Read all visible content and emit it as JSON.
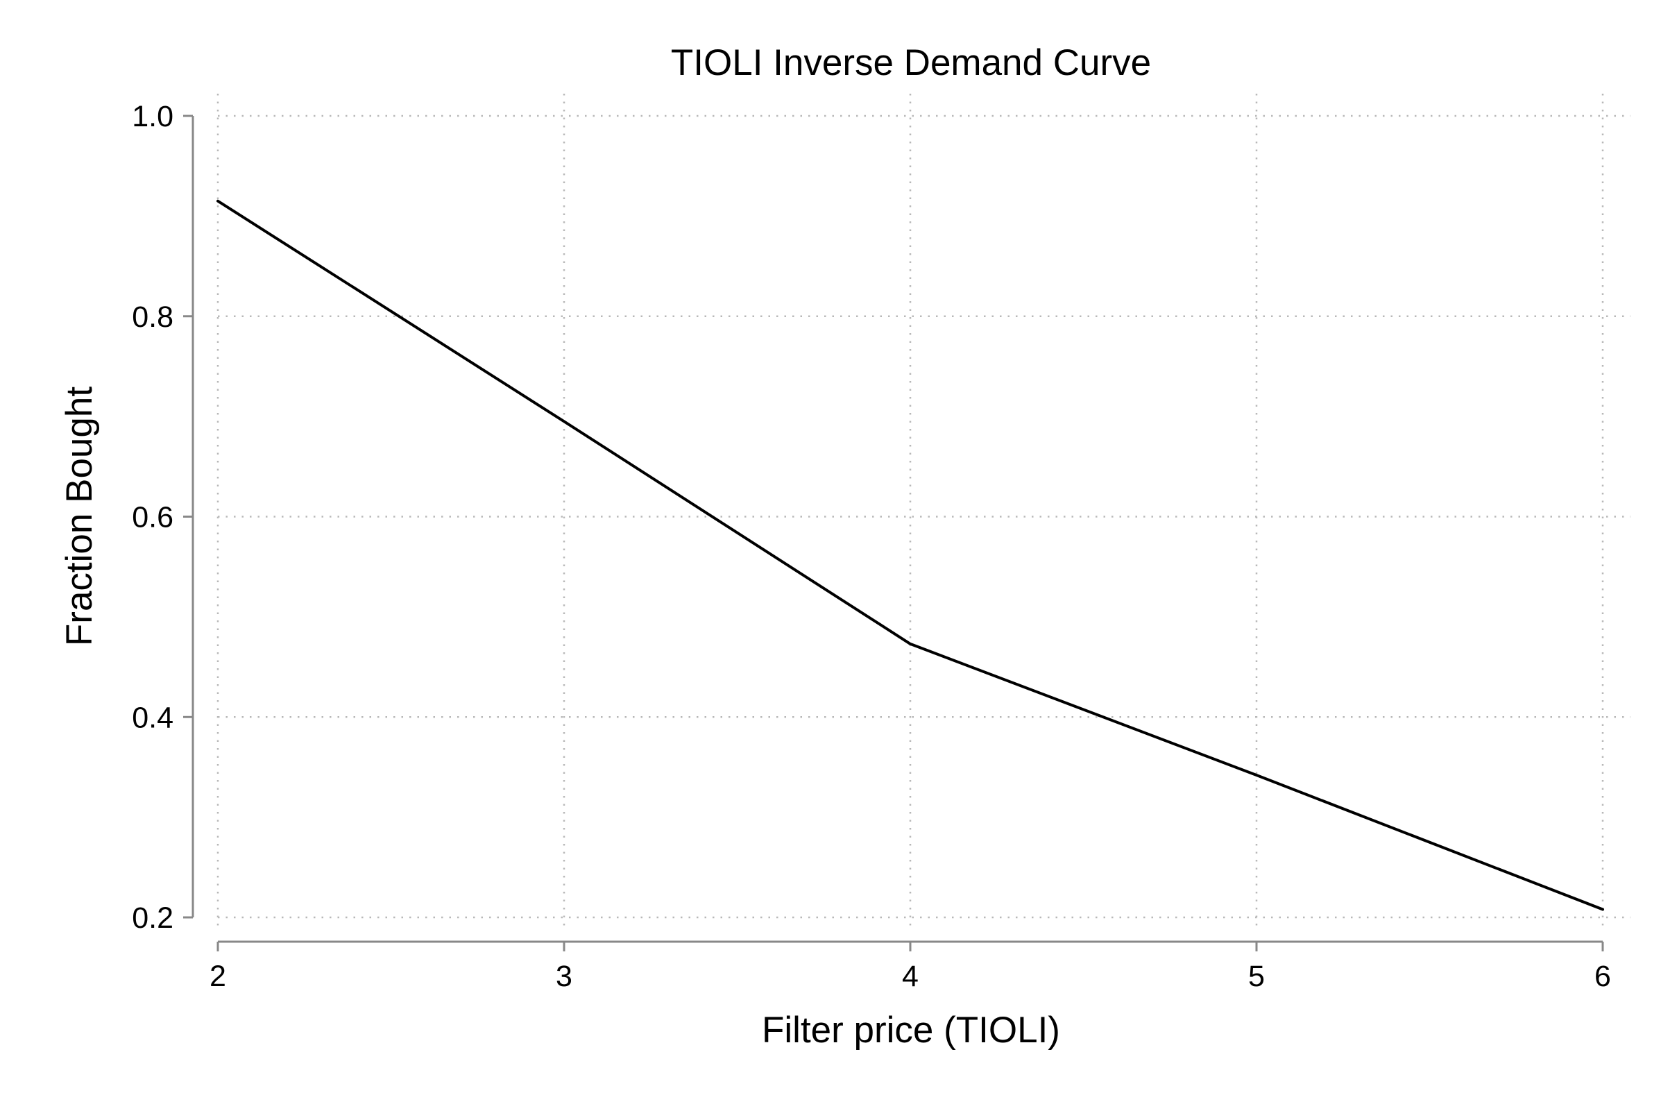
{
  "chart_data": {
    "type": "line",
    "title": "TIOLI Inverse Demand Curve",
    "xlabel": "Filter price (TIOLI)",
    "ylabel": "Fraction Bought",
    "xlim": [
      2,
      6
    ],
    "ylim": [
      0.2,
      1.0
    ],
    "x_ticks": [
      2,
      3,
      4,
      5,
      6
    ],
    "x_tick_labels": [
      "2",
      "3",
      "4",
      "5",
      "6"
    ],
    "y_ticks": [
      0.2,
      0.4,
      0.6,
      0.8,
      1.0
    ],
    "y_tick_labels": [
      "0.2",
      "0.4",
      "0.6",
      "0.8",
      "1.0"
    ],
    "grid": true,
    "series": [
      {
        "x": [
          2,
          3,
          4,
          5,
          6
        ],
        "y": [
          0.915,
          0.695,
          0.473,
          0.342,
          0.208
        ],
        "color": "#000000"
      }
    ]
  }
}
